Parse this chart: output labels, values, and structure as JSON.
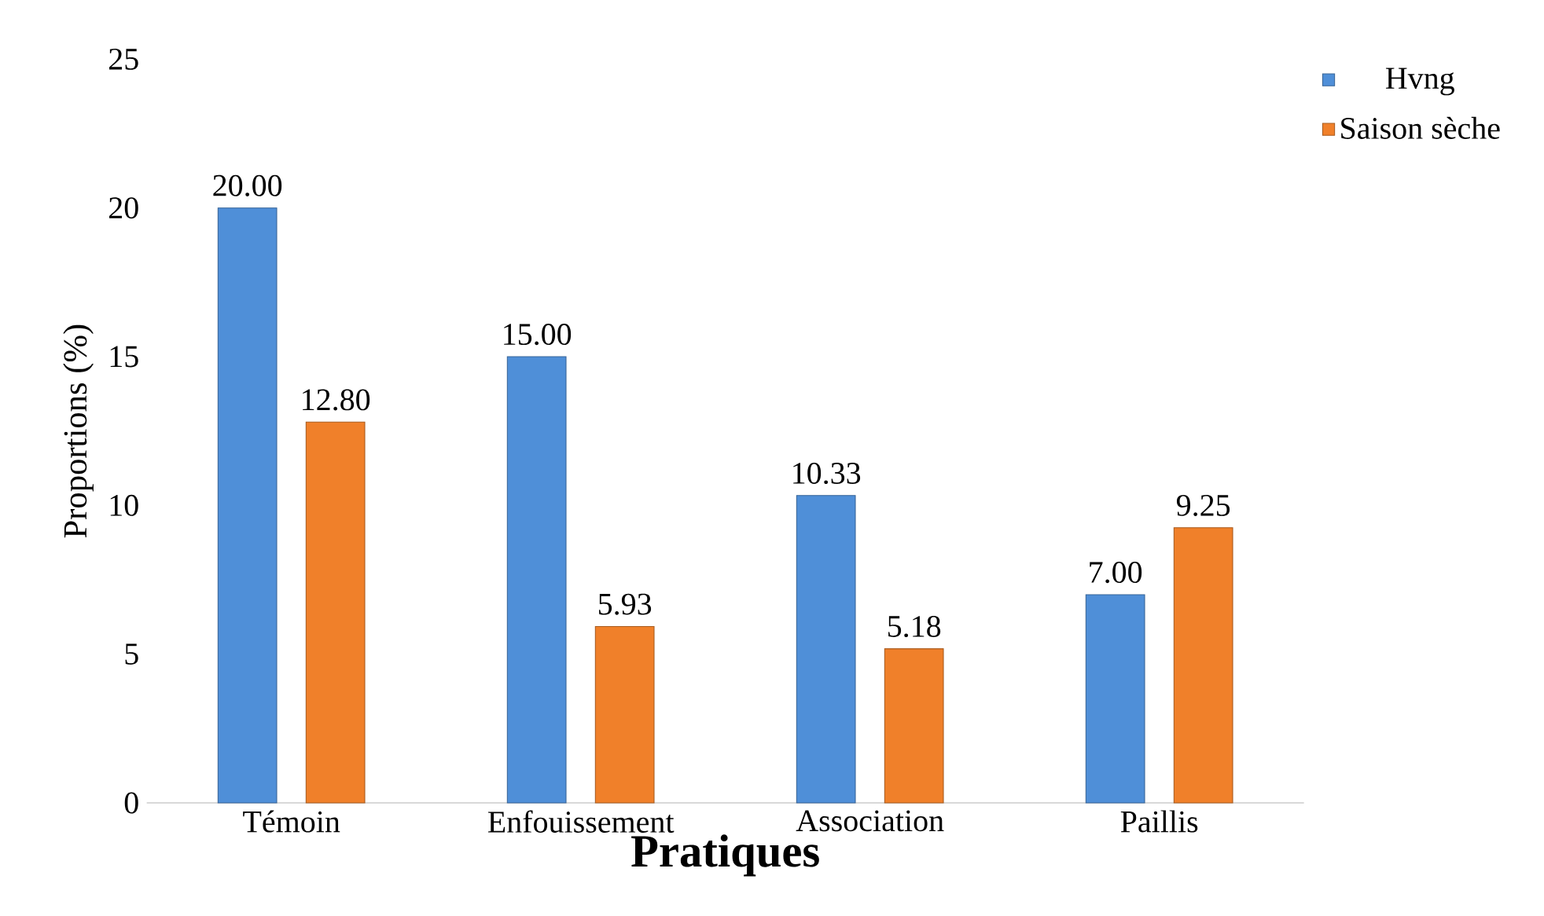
{
  "chart_data": {
    "type": "bar",
    "xlabel": "Pratiques",
    "ylabel": "Proportions (%)",
    "categories": [
      "Témoin",
      "Enfouissement",
      "Association",
      "Paillis"
    ],
    "series": [
      {
        "name": "Hvng",
        "color": "#4f8fd8",
        "values": [
          20.0,
          15.0,
          10.33,
          7.0
        ],
        "value_labels": [
          "20.00",
          "15.00",
          "10.33",
          "7.00"
        ]
      },
      {
        "name": "Saison sèche",
        "color": "#f0802a",
        "values": [
          12.8,
          5.93,
          5.18,
          9.25
        ],
        "value_labels": [
          "12.80",
          "5.93",
          "5.18",
          "9.25"
        ]
      }
    ],
    "ylim": [
      0,
      25
    ],
    "yticks": [
      0,
      5,
      10,
      15,
      20,
      25
    ],
    "legend": "top right"
  }
}
